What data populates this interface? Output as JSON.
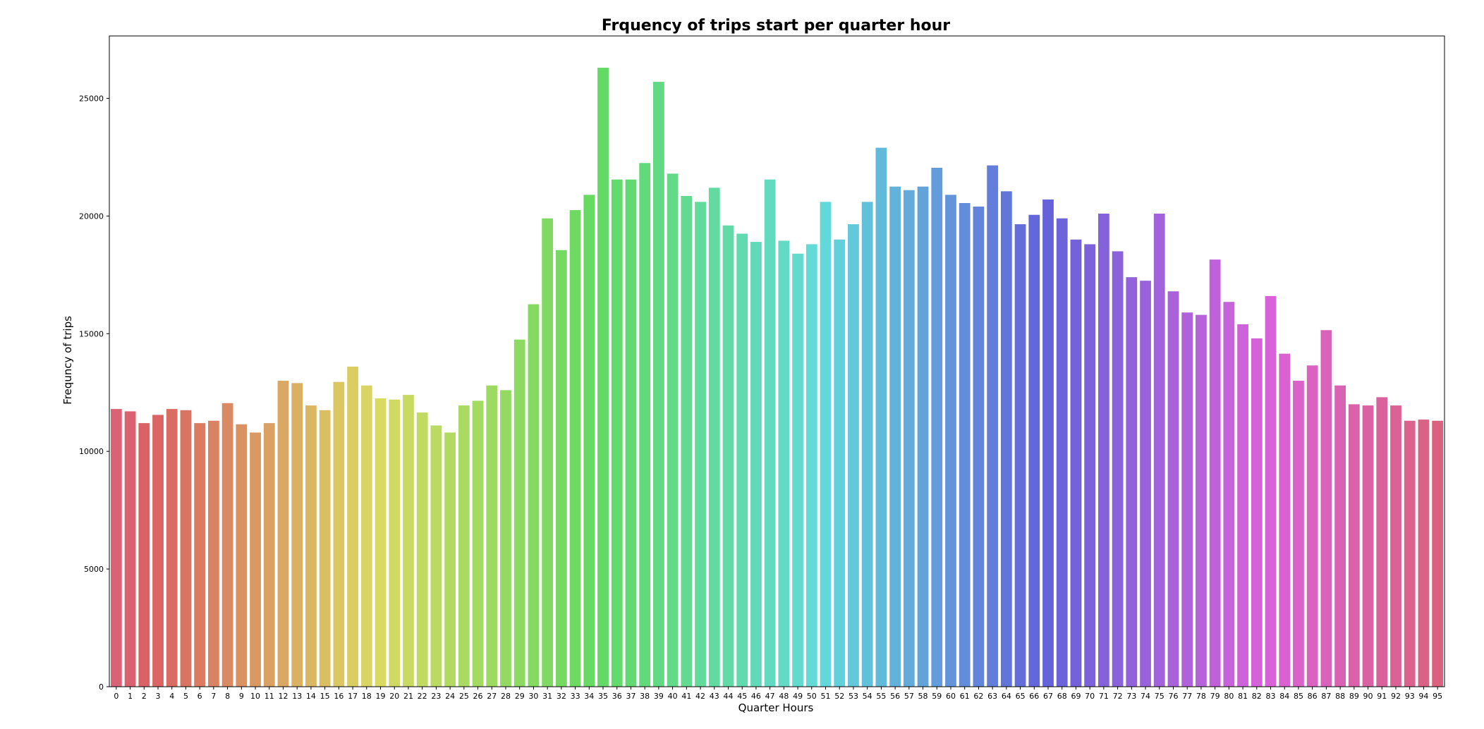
{
  "chart_data": {
    "type": "bar",
    "title": "Frquency of trips start per quarter hour",
    "xlabel": "Quarter Hours",
    "ylabel": "Frequncy of trips",
    "ylim": [
      0,
      27650
    ],
    "yticks": [
      0,
      5000,
      10000,
      15000,
      20000,
      25000
    ],
    "grid": false,
    "categories": [
      "0",
      "1",
      "2",
      "3",
      "4",
      "5",
      "6",
      "7",
      "8",
      "9",
      "10",
      "11",
      "12",
      "13",
      "14",
      "15",
      "16",
      "17",
      "18",
      "19",
      "20",
      "21",
      "22",
      "23",
      "24",
      "25",
      "26",
      "27",
      "28",
      "29",
      "30",
      "31",
      "32",
      "33",
      "34",
      "35",
      "36",
      "37",
      "38",
      "39",
      "40",
      "41",
      "42",
      "43",
      "44",
      "45",
      "46",
      "47",
      "48",
      "49",
      "50",
      "51",
      "52",
      "53",
      "54",
      "55",
      "56",
      "57",
      "58",
      "59",
      "60",
      "61",
      "62",
      "63",
      "64",
      "65",
      "66",
      "67",
      "68",
      "69",
      "70",
      "71",
      "72",
      "73",
      "74",
      "75",
      "76",
      "77",
      "78",
      "79",
      "80",
      "81",
      "82",
      "83",
      "84",
      "85",
      "86",
      "87",
      "88",
      "89",
      "90",
      "91",
      "92",
      "93",
      "94",
      "95"
    ],
    "values": [
      11800,
      11700,
      11200,
      11550,
      11800,
      11750,
      11200,
      11300,
      12050,
      11150,
      10800,
      11200,
      13000,
      12900,
      11950,
      11750,
      12950,
      13600,
      12800,
      12250,
      12200,
      12400,
      11650,
      11100,
      10800,
      11950,
      12150,
      12800,
      12600,
      14750,
      16250,
      19900,
      18550,
      20250,
      20900,
      26300,
      21550,
      21550,
      22250,
      25700,
      21800,
      20850,
      20600,
      21200,
      19600,
      19250,
      18900,
      21550,
      18950,
      18400,
      18800,
      20600,
      19000,
      19650,
      20600,
      22900,
      21250,
      21100,
      21250,
      22050,
      20900,
      20550,
      20400,
      22150,
      21050,
      19650,
      20050,
      20700,
      19900,
      19000,
      18800,
      20100,
      18500,
      17400,
      17250,
      20100,
      16800,
      15900,
      15800,
      18150,
      16350,
      15400,
      14800,
      16600,
      14150,
      13000,
      13650,
      15150,
      12800,
      12000,
      11950,
      12300,
      11950,
      11300,
      11350,
      11300
    ]
  }
}
